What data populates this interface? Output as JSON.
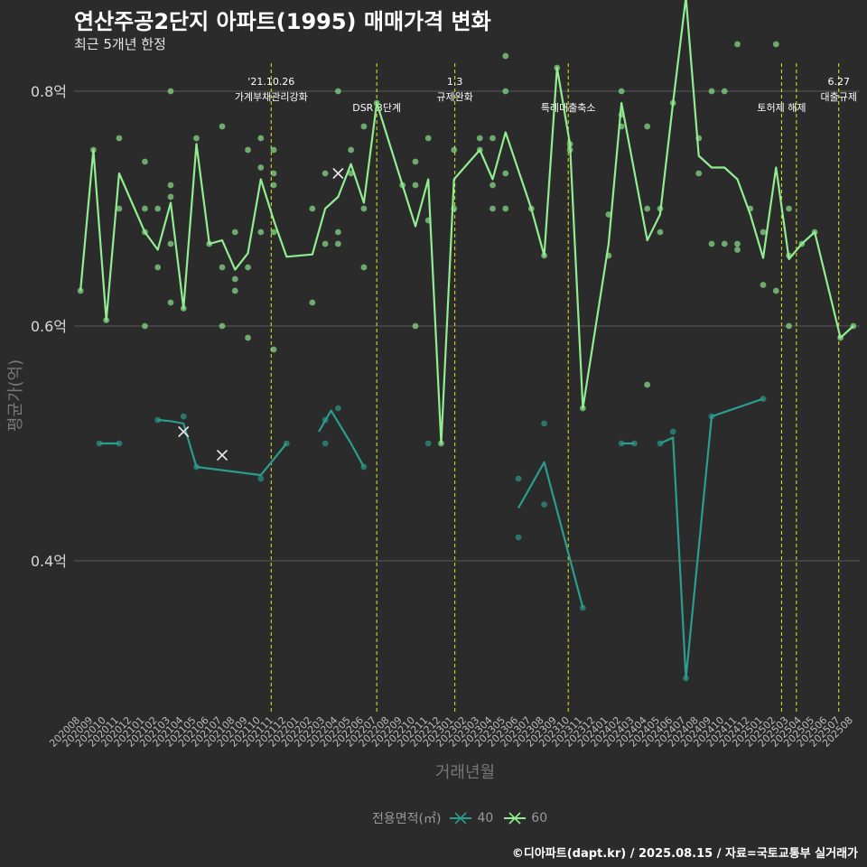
{
  "header": {
    "title": "연산주공2단지 아파트(1995) 매매가격 변화",
    "subtitle": "최근 5개년 한정"
  },
  "caption": "©디아파트(dapt.kr) / 2025.08.15 / 자료=국토교통부 실거래가",
  "colors": {
    "background": "#2b2b2b",
    "grid": "#5a5a5a",
    "event_line": "#e5e81f",
    "series_40": "#2a9d8f",
    "series_60": "#90ee90"
  },
  "legend": {
    "title": "전용면적(㎡)",
    "items": [
      {
        "label": "40",
        "color": "#2a9d8f"
      },
      {
        "label": "60",
        "color": "#90ee90"
      }
    ]
  },
  "chart_data": {
    "type": "line",
    "xlabel": "거래년월",
    "ylabel": "평균가(억)",
    "ylim": [
      0.27,
      0.83
    ],
    "y_ticks": [
      {
        "value": 0.4,
        "label": "0.4억"
      },
      {
        "value": 0.6,
        "label": "0.6억"
      },
      {
        "value": 0.8,
        "label": "0.8억"
      }
    ],
    "grid": true,
    "legend_position": "bottom",
    "categories": [
      "202008",
      "202009",
      "202010",
      "202011",
      "202012",
      "202101",
      "202102",
      "202103",
      "202104",
      "202105",
      "202106",
      "202107",
      "202108",
      "202109",
      "202110",
      "202111",
      "202112",
      "202201",
      "202202",
      "202203",
      "202204",
      "202205",
      "202206",
      "202207",
      "202208",
      "202209",
      "202210",
      "202211",
      "202212",
      "202301",
      "202302",
      "202303",
      "202304",
      "202305",
      "202306",
      "202307",
      "202308",
      "202309",
      "202310",
      "202311",
      "202312",
      "202401",
      "202402",
      "202403",
      "202404",
      "202405",
      "202406",
      "202407",
      "202408",
      "202409",
      "202410",
      "202411",
      "202412",
      "202501",
      "202502",
      "202503",
      "202504",
      "202505",
      "202506",
      "202507",
      "202508"
    ],
    "events": [
      {
        "at": "2021-10-26",
        "label": "'21.10.26\n가계부채관리강화"
      },
      {
        "at": "2022-07-01",
        "label": "DSR 3단계"
      },
      {
        "at": "2023-01-03",
        "label": "1.3\n규제완화"
      },
      {
        "at": "2023-09-27",
        "label": "특례대출축소"
      },
      {
        "at": "2025-02-13",
        "label": "토허제 해제"
      },
      {
        "at": "2025-03-19",
        "label": ""
      },
      {
        "at": "2025-06-27",
        "label": "6.27\n대출규제"
      }
    ],
    "series": [
      {
        "name": "40",
        "color": "#2a9d8f",
        "line": [
          [
            [
              "2020-09-15",
              0.5
            ],
            [
              "2020-11-01",
              0.5
            ]
          ],
          [
            [
              "2021-02-01",
              0.52
            ],
            [
              "2021-03-01",
              0.519
            ],
            [
              "2021-04-01",
              0.517
            ],
            [
              "2021-05-01",
              0.48
            ],
            [
              "2021-10-01",
              0.473
            ],
            [
              "2021-12-01",
              0.5
            ]
          ],
          [
            [
              "2022-02-15",
              0.51
            ],
            [
              "2022-03-15",
              0.528
            ],
            [
              "2022-05-01",
              0.5
            ],
            [
              "2022-06-01",
              0.48
            ]
          ],
          [
            [
              "2023-06-01",
              0.445
            ],
            [
              "2023-08-01",
              0.484
            ],
            [
              "2023-11-01",
              0.36
            ]
          ],
          [
            [
              "2024-02-01",
              0.5
            ],
            [
              "2024-03-01",
              0.5
            ]
          ],
          [
            [
              "2024-05-01",
              0.5
            ],
            [
              "2024-06-01",
              0.505
            ],
            [
              "2024-07-01",
              0.3
            ],
            [
              "2024-09-01",
              0.523
            ],
            [
              "2025-01-01",
              0.538
            ]
          ]
        ],
        "points": [
          [
            "2020-09-15",
            0.5
          ],
          [
            "2020-11-01",
            0.5
          ],
          [
            "2021-02-01",
            0.52
          ],
          [
            "2021-04-01",
            0.523
          ],
          [
            "2021-05-01",
            0.48
          ],
          [
            "2021-10-01",
            0.47
          ],
          [
            "2021-12-01",
            0.5
          ],
          [
            "2022-03-01",
            0.5
          ],
          [
            "2022-03-01",
            0.52
          ],
          [
            "2022-04-01",
            0.53
          ],
          [
            "2022-06-01",
            0.48
          ],
          [
            "2022-11-01",
            0.5
          ],
          [
            "2023-06-01",
            0.47
          ],
          [
            "2023-06-01",
            0.42
          ],
          [
            "2023-08-01",
            0.517
          ],
          [
            "2023-08-01",
            0.448
          ],
          [
            "2023-11-01",
            0.36
          ],
          [
            "2024-02-01",
            0.5
          ],
          [
            "2024-03-01",
            0.5
          ],
          [
            "2024-05-01",
            0.5
          ],
          [
            "2024-06-01",
            0.51
          ],
          [
            "2024-07-01",
            0.3
          ],
          [
            "2024-09-01",
            0.523
          ],
          [
            "2025-01-01",
            0.538
          ]
        ],
        "markers": [
          [
            "2021-04-01",
            0.51
          ],
          [
            "2021-07-01",
            0.49
          ]
        ]
      },
      {
        "name": "60",
        "color": "#90ee90",
        "line": [
          [
            [
              "2020-08-01",
              0.63
            ],
            [
              "2020-09-01",
              0.75
            ],
            [
              "2020-10-01",
              0.605
            ],
            [
              "2020-11-01",
              0.73
            ],
            [
              "2021-01-01",
              0.68
            ],
            [
              "2021-02-01",
              0.665
            ],
            [
              "2021-03-01",
              0.705
            ],
            [
              "2021-04-01",
              0.615
            ],
            [
              "2021-05-01",
              0.755
            ],
            [
              "2021-06-01",
              0.67
            ],
            [
              "2021-07-01",
              0.673
            ],
            [
              "2021-08-01",
              0.648
            ],
            [
              "2021-09-01",
              0.662
            ],
            [
              "2021-10-01",
              0.725
            ],
            [
              "2021-11-01",
              0.69
            ],
            [
              "2021-12-01",
              0.659
            ],
            [
              "2022-02-01",
              0.661
            ],
            [
              "2022-03-01",
              0.7
            ],
            [
              "2022-04-01",
              0.71
            ],
            [
              "2022-05-01",
              0.738
            ],
            [
              "2022-06-01",
              0.705
            ],
            [
              "2022-07-01",
              0.79
            ],
            [
              "2022-09-01",
              0.72
            ],
            [
              "2022-10-01",
              0.685
            ],
            [
              "2022-11-01",
              0.725
            ],
            [
              "2022-12-01",
              0.5
            ],
            [
              "2023-01-01",
              0.725
            ],
            [
              "2023-03-01",
              0.75
            ],
            [
              "2023-04-01",
              0.725
            ],
            [
              "2023-05-01",
              0.765
            ],
            [
              "2023-07-01",
              0.7
            ],
            [
              "2023-08-01",
              0.66
            ],
            [
              "2023-09-01",
              0.82
            ],
            [
              "2023-10-01",
              0.755
            ],
            [
              "2023-11-01",
              0.53
            ],
            [
              "2024-01-01",
              0.67
            ],
            [
              "2024-02-01",
              0.79
            ],
            [
              "2024-04-01",
              0.673
            ],
            [
              "2024-05-01",
              0.695
            ],
            [
              "2024-06-01",
              0.79
            ],
            [
              "2024-07-01",
              0.88
            ],
            [
              "2024-08-01",
              0.745
            ],
            [
              "2024-09-01",
              0.735
            ],
            [
              "2024-10-01",
              0.735
            ],
            [
              "2024-11-01",
              0.725
            ],
            [
              "2024-12-01",
              0.695
            ],
            [
              "2025-01-01",
              0.658
            ],
            [
              "2025-02-01",
              0.735
            ],
            [
              "2025-03-01",
              0.657
            ],
            [
              "2025-04-01",
              0.67
            ],
            [
              "2025-05-01",
              0.68
            ],
            [
              "2025-07-01",
              0.59
            ],
            [
              "2025-08-01",
              0.6
            ]
          ]
        ],
        "points": [
          [
            "2020-08-01",
            0.63
          ],
          [
            "2020-09-01",
            0.75
          ],
          [
            "2020-10-01",
            0.605
          ],
          [
            "2020-11-01",
            0.76
          ],
          [
            "2020-11-01",
            0.7
          ],
          [
            "2021-01-01",
            0.7
          ],
          [
            "2021-01-01",
            0.68
          ],
          [
            "2021-01-01",
            0.6
          ],
          [
            "2021-01-01",
            0.74
          ],
          [
            "2021-02-01",
            0.7
          ],
          [
            "2021-02-01",
            0.65
          ],
          [
            "2021-03-01",
            0.8
          ],
          [
            "2021-03-01",
            0.72
          ],
          [
            "2021-03-01",
            0.71
          ],
          [
            "2021-03-01",
            0.67
          ],
          [
            "2021-03-01",
            0.62
          ],
          [
            "2021-04-01",
            0.615
          ],
          [
            "2021-05-01",
            0.76
          ],
          [
            "2021-06-01",
            0.67
          ],
          [
            "2021-07-01",
            0.77
          ],
          [
            "2021-07-01",
            0.65
          ],
          [
            "2021-07-01",
            0.6
          ],
          [
            "2021-08-01",
            0.68
          ],
          [
            "2021-08-01",
            0.64
          ],
          [
            "2021-08-01",
            0.63
          ],
          [
            "2021-09-01",
            0.75
          ],
          [
            "2021-09-01",
            0.65
          ],
          [
            "2021-09-01",
            0.59
          ],
          [
            "2021-10-01",
            0.76
          ],
          [
            "2021-10-01",
            0.735
          ],
          [
            "2021-10-01",
            0.68
          ],
          [
            "2021-11-01",
            0.75
          ],
          [
            "2021-11-01",
            0.73
          ],
          [
            "2021-11-01",
            0.72
          ],
          [
            "2021-11-01",
            0.68
          ],
          [
            "2021-11-01",
            0.58
          ],
          [
            "2022-02-01",
            0.7
          ],
          [
            "2022-02-01",
            0.62
          ],
          [
            "2022-03-01",
            0.73
          ],
          [
            "2022-03-01",
            0.67
          ],
          [
            "2022-04-01",
            0.8
          ],
          [
            "2022-04-01",
            0.68
          ],
          [
            "2022-04-01",
            0.67
          ],
          [
            "2022-05-01",
            0.75
          ],
          [
            "2022-05-01",
            0.73
          ],
          [
            "2022-06-01",
            0.77
          ],
          [
            "2022-06-01",
            0.7
          ],
          [
            "2022-06-01",
            0.65
          ],
          [
            "2022-07-01",
            0.79
          ],
          [
            "2022-09-01",
            0.72
          ],
          [
            "2022-10-01",
            0.74
          ],
          [
            "2022-10-01",
            0.72
          ],
          [
            "2022-10-01",
            0.6
          ],
          [
            "2022-11-01",
            0.76
          ],
          [
            "2022-11-01",
            0.69
          ],
          [
            "2022-12-01",
            0.5
          ],
          [
            "2023-01-01",
            0.75
          ],
          [
            "2023-01-01",
            0.7
          ],
          [
            "2023-03-01",
            0.76
          ],
          [
            "2023-03-01",
            0.75
          ],
          [
            "2023-04-01",
            0.76
          ],
          [
            "2023-04-01",
            0.72
          ],
          [
            "2023-04-01",
            0.7
          ],
          [
            "2023-05-01",
            0.83
          ],
          [
            "2023-05-01",
            0.8
          ],
          [
            "2023-05-01",
            0.73
          ],
          [
            "2023-05-01",
            0.7
          ],
          [
            "2023-07-01",
            0.7
          ],
          [
            "2023-08-01",
            0.66
          ],
          [
            "2023-09-01",
            0.82
          ],
          [
            "2023-10-01",
            0.755
          ],
          [
            "2023-10-01",
            0.75
          ],
          [
            "2023-11-01",
            0.53
          ],
          [
            "2024-01-01",
            0.695
          ],
          [
            "2024-01-01",
            0.66
          ],
          [
            "2024-02-01",
            0.8
          ],
          [
            "2024-02-01",
            0.78
          ],
          [
            "2024-02-01",
            0.77
          ],
          [
            "2024-04-01",
            0.77
          ],
          [
            "2024-04-01",
            0.7
          ],
          [
            "2024-04-01",
            0.55
          ],
          [
            "2024-05-01",
            0.7
          ],
          [
            "2024-05-01",
            0.68
          ],
          [
            "2024-06-01",
            0.79
          ],
          [
            "2024-07-01",
            0.88
          ],
          [
            "2024-08-01",
            0.76
          ],
          [
            "2024-08-01",
            0.73
          ],
          [
            "2024-09-01",
            0.8
          ],
          [
            "2024-09-01",
            0.67
          ],
          [
            "2024-10-01",
            0.8
          ],
          [
            "2024-10-01",
            0.67
          ],
          [
            "2024-11-01",
            0.84
          ],
          [
            "2024-11-01",
            0.67
          ],
          [
            "2024-11-01",
            0.665
          ],
          [
            "2024-12-01",
            0.7
          ],
          [
            "2025-01-01",
            0.68
          ],
          [
            "2025-01-01",
            0.635
          ],
          [
            "2025-02-01",
            0.84
          ],
          [
            "2025-02-01",
            0.63
          ],
          [
            "2025-03-01",
            0.7
          ],
          [
            "2025-03-01",
            0.66
          ],
          [
            "2025-03-01",
            0.6
          ],
          [
            "2025-04-01",
            0.67
          ],
          [
            "2025-05-01",
            0.68
          ],
          [
            "2025-07-01",
            0.59
          ],
          [
            "2025-08-01",
            0.6
          ]
        ],
        "markers": [
          [
            "2022-04-01",
            0.73
          ]
        ]
      }
    ]
  }
}
